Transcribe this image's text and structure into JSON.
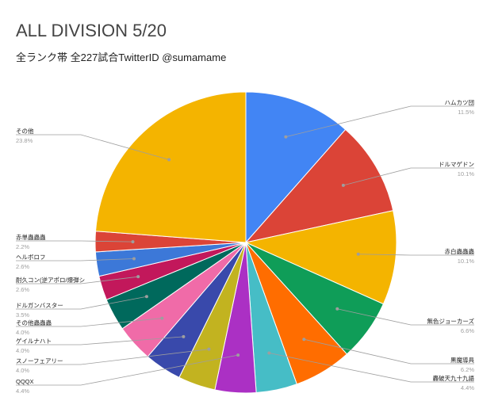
{
  "title": "ALL DIVISION 5/20",
  "subtitle": "全ランク帯 全227試合TwitterID @sumamame",
  "chart_data": {
    "type": "pie",
    "title": "ALL DIVISION 5/20",
    "subtitle": "全ランク帯 全227試合TwitterID @sumamame",
    "slices": [
      {
        "label": "ハムカツ団",
        "value": 11.5,
        "pct_label": "11.5%",
        "color": "#4285f4"
      },
      {
        "label": "ドルマゲドン",
        "value": 10.1,
        "pct_label": "10.1%",
        "color": "#db4437"
      },
      {
        "label": "赤白蟲蟲蟲",
        "value": 10.1,
        "pct_label": "10.1%",
        "color": "#f4b400"
      },
      {
        "label": "無色ジョーカーズ",
        "value": 6.6,
        "pct_label": "6.6%",
        "color": "#0f9d58"
      },
      {
        "label": "黒魔導具",
        "value": 6.2,
        "pct_label": "6.2%",
        "color": "#ff6d00"
      },
      {
        "label": "轟破天九十九語",
        "value": 4.4,
        "pct_label": "4.4%",
        "color": "#46bdc6"
      },
      {
        "label": "QQQX",
        "value": 4.4,
        "pct_label": "4.4%",
        "color": "#ab30c4"
      },
      {
        "label": "スノーフェアリー",
        "value": 4.0,
        "pct_label": "4.0%",
        "color": "#c2b320"
      },
      {
        "label": "ゲイルナハト",
        "value": 4.0,
        "pct_label": "4.0%",
        "color": "#3949ab"
      },
      {
        "label": "その他蟲蟲蟲",
        "value": 4.0,
        "pct_label": "4.0%",
        "color": "#f06ba8"
      },
      {
        "label": "ドルガンバスター",
        "value": 3.5,
        "pct_label": "3.5%",
        "color": "#00695c"
      },
      {
        "label": "耐久コン(逆アポロ/爆弾シ",
        "value": 2.6,
        "pct_label": "2.6%",
        "color": "#c2185b"
      },
      {
        "label": "ヘルボロフ",
        "value": 2.6,
        "pct_label": "2.6%",
        "color": "#3c78d8"
      },
      {
        "label": "赤単蟲蟲蟲",
        "value": 2.2,
        "pct_label": "2.2%",
        "color": "#db4437"
      },
      {
        "label": "その他",
        "value": 23.8,
        "pct_label": "23.8%",
        "color": "#f4b400"
      }
    ],
    "legend": "labels"
  }
}
